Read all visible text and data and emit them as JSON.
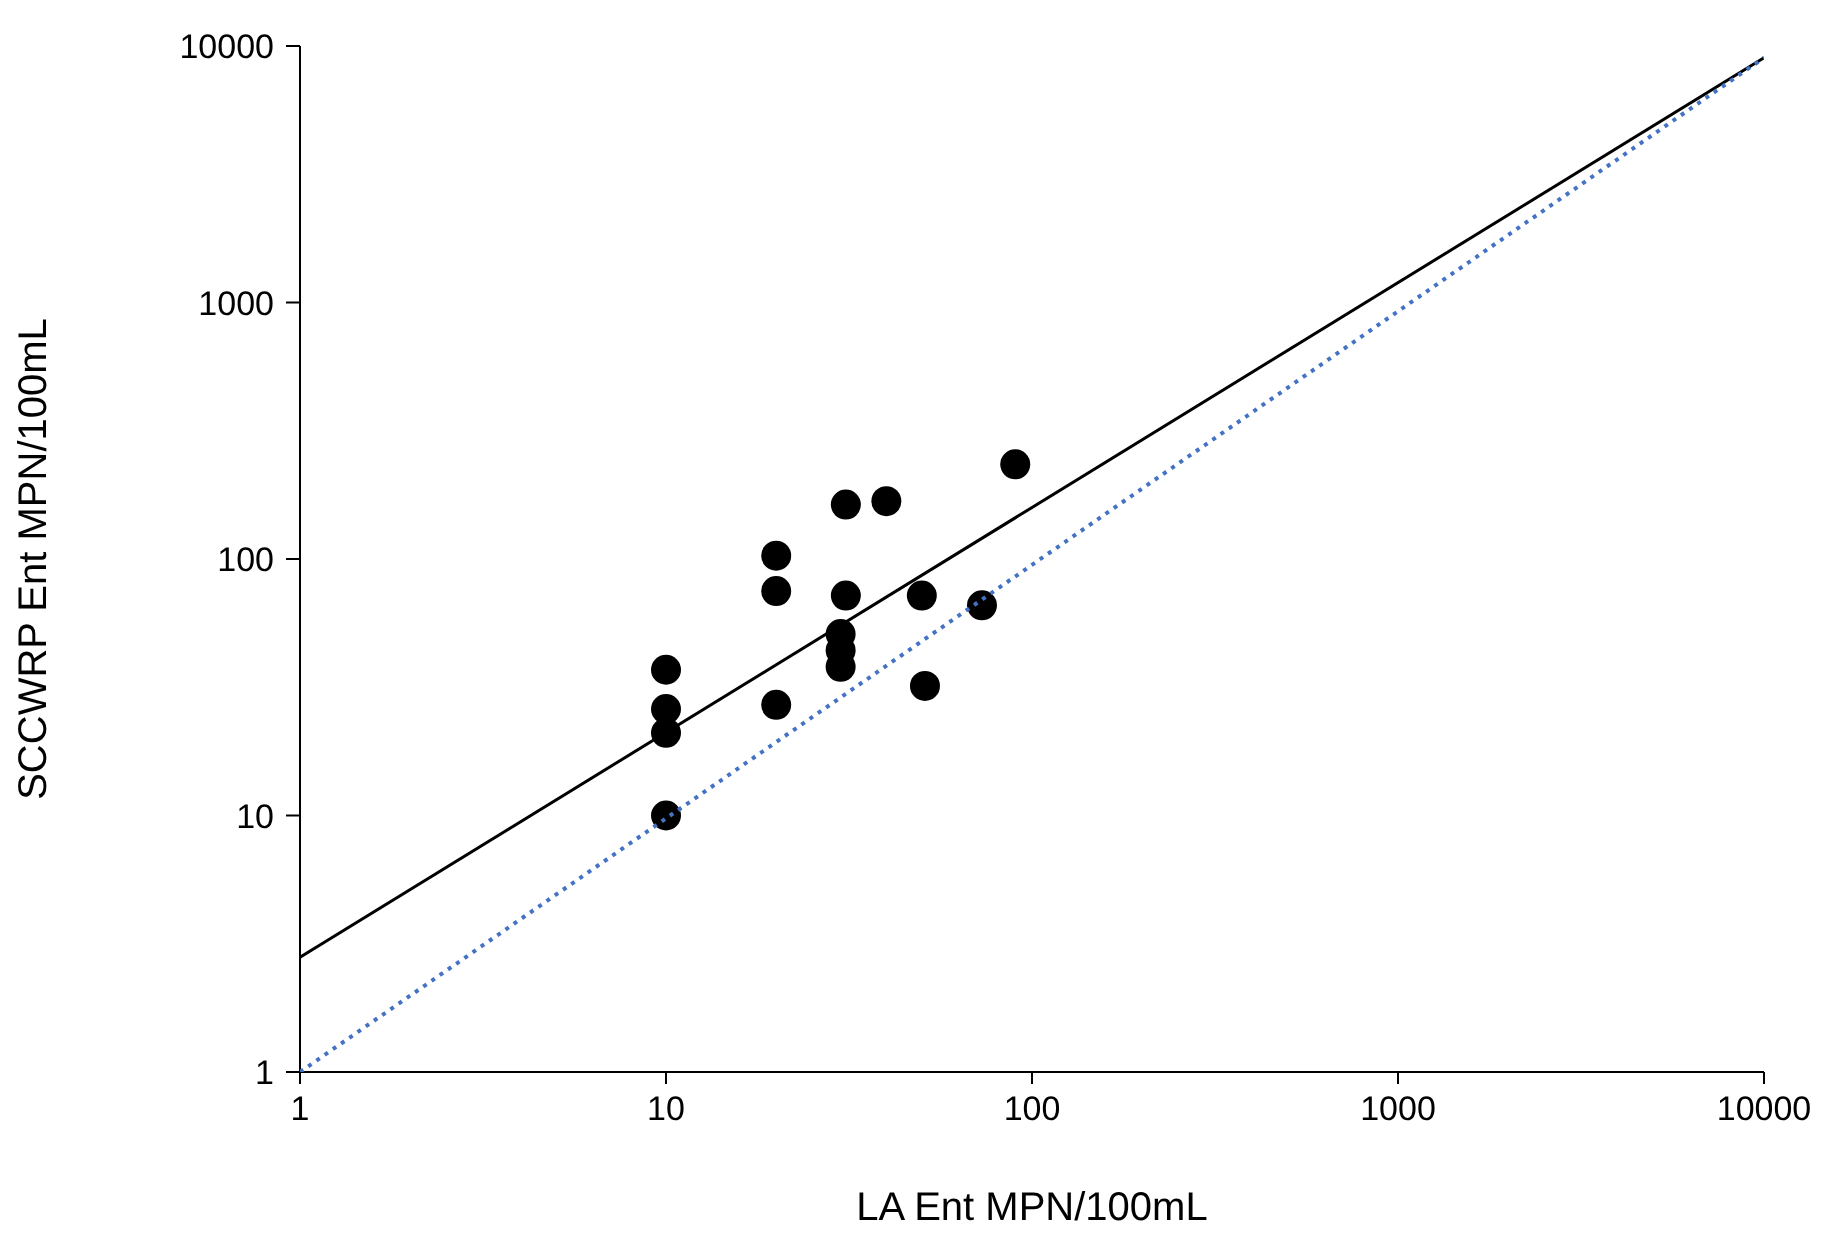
{
  "chart_data": {
    "type": "scatter",
    "xlabel": "LA Ent MPN/100mL",
    "ylabel": "SCCWRP Ent MPN/100mL",
    "log": "xy",
    "xlim": [
      1,
      10000
    ],
    "xticks": [
      1,
      10,
      100,
      1000,
      10000
    ],
    "ylim": [
      1,
      10000
    ],
    "yticks": [
      1,
      10,
      100,
      1000,
      10000
    ],
    "grid": false,
    "marker": "circle",
    "series": [
      {
        "type": "scatter",
        "color": "#000000",
        "x": [
          10,
          10,
          10,
          10,
          20,
          20,
          20,
          31,
          40,
          90,
          31,
          30,
          30,
          30,
          50,
          51,
          73
        ],
        "values": [
          37,
          26,
          21,
          10,
          103,
          75,
          27,
          163,
          168,
          234,
          72,
          51,
          44,
          38,
          72,
          32,
          66
        ]
      },
      {
        "type": "line",
        "color": "#000000",
        "x": [
          1,
          10000
        ],
        "values": [
          2.8,
          9000
        ],
        "line_style": "solid",
        "marker": "none"
      },
      {
        "type": "line",
        "color": "#4472c4",
        "x": [
          1,
          10000
        ],
        "values": [
          1,
          9000
        ],
        "line_style": "dotted",
        "marker": "none"
      }
    ]
  }
}
